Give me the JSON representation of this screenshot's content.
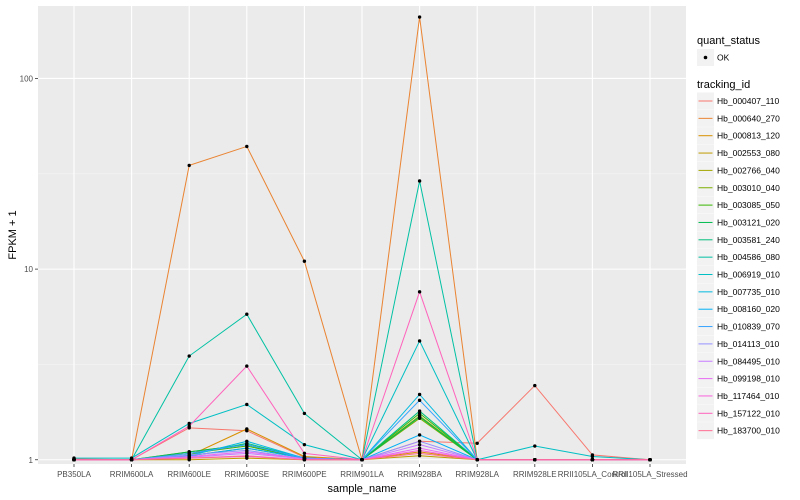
{
  "chart_data": {
    "type": "line",
    "xlabel": "sample_name",
    "ylabel": "FPKM + 1",
    "y_scale": "log10",
    "ylim": [
      0.95,
      240
    ],
    "yticks": [
      1,
      10,
      100
    ],
    "ytick_labels": [
      "1",
      "10",
      "100"
    ],
    "categories": [
      "PB350LA",
      "RRIM600LA",
      "RRIM600LE",
      "RRIM600SE",
      "RRIM600PE",
      "RRIM901LA",
      "RRIM928BA",
      "RRIM928LA",
      "RRIM928LE",
      "RRII105LA_Control",
      "RRII105LA_Stressed"
    ],
    "legend_status": {
      "title": "quant_status",
      "entries": [
        "OK"
      ]
    },
    "legend_tracking": {
      "title": "tracking_id"
    },
    "series": [
      {
        "name": "Hb_000407_110",
        "color": "#F8766D",
        "values": [
          1.01,
          1.0,
          1.47,
          1.42,
          1.03,
          1.0,
          1.25,
          1.22,
          2.45,
          1.06,
          1.0
        ]
      },
      {
        "name": "Hb_000640_270",
        "color": "#EA8331",
        "values": [
          1.0,
          1.0,
          35.0,
          44.0,
          11.0,
          1.0,
          210.0,
          1.0,
          1.0,
          1.0,
          1.0
        ]
      },
      {
        "name": "Hb_000813_120",
        "color": "#D89000",
        "values": [
          1.0,
          1.0,
          1.05,
          1.45,
          1.04,
          1.0,
          1.1,
          1.0,
          1.0,
          1.0,
          1.0
        ]
      },
      {
        "name": "Hb_002553_080",
        "color": "#C09B00",
        "values": [
          1.0,
          1.0,
          1.0,
          1.02,
          1.0,
          1.0,
          1.05,
          1.0,
          1.0,
          1.0,
          1.0
        ]
      },
      {
        "name": "Hb_002766_040",
        "color": "#A3A500",
        "values": [
          1.0,
          1.0,
          1.1,
          1.2,
          1.02,
          1.0,
          1.7,
          1.0,
          1.0,
          1.0,
          1.0
        ]
      },
      {
        "name": "Hb_003010_040",
        "color": "#7CAE00",
        "values": [
          1.0,
          1.0,
          1.05,
          1.15,
          1.02,
          1.0,
          1.65,
          1.0,
          1.0,
          1.0,
          1.0
        ]
      },
      {
        "name": "Hb_003085_050",
        "color": "#39B600",
        "values": [
          1.0,
          1.0,
          1.08,
          1.18,
          1.02,
          1.0,
          1.75,
          1.0,
          1.0,
          1.0,
          1.0
        ]
      },
      {
        "name": "Hb_003121_020",
        "color": "#00BB4E",
        "values": [
          1.0,
          1.0,
          1.1,
          1.2,
          1.02,
          1.0,
          1.68,
          1.0,
          1.0,
          1.0,
          1.0
        ]
      },
      {
        "name": "Hb_003581_240",
        "color": "#00BF7D",
        "values": [
          1.0,
          1.0,
          1.06,
          1.22,
          1.02,
          1.0,
          1.8,
          1.0,
          1.0,
          1.0,
          1.0
        ]
      },
      {
        "name": "Hb_004586_080",
        "color": "#00C1A3",
        "values": [
          1.0,
          1.0,
          3.5,
          5.8,
          1.75,
          1.0,
          29.0,
          1.0,
          1.0,
          1.0,
          1.0
        ]
      },
      {
        "name": "Hb_006919_010",
        "color": "#00BFC4",
        "values": [
          1.02,
          1.02,
          1.55,
          1.95,
          1.2,
          1.0,
          4.2,
          1.0,
          1.18,
          1.04,
          1.0
        ]
      },
      {
        "name": "Hb_007735_010",
        "color": "#00BAE0",
        "values": [
          1.0,
          1.0,
          1.05,
          1.25,
          1.02,
          1.0,
          2.2,
          1.0,
          1.0,
          1.0,
          1.0
        ]
      },
      {
        "name": "Hb_008160_020",
        "color": "#00B0F6",
        "values": [
          1.0,
          1.0,
          1.05,
          1.15,
          1.02,
          1.0,
          1.35,
          1.0,
          1.0,
          1.0,
          1.0
        ]
      },
      {
        "name": "Hb_010839_070",
        "color": "#35A2FF",
        "values": [
          1.0,
          1.0,
          1.08,
          1.2,
          1.02,
          1.0,
          2.05,
          1.0,
          1.0,
          1.0,
          1.0
        ]
      },
      {
        "name": "Hb_014113_010",
        "color": "#9590FF",
        "values": [
          1.0,
          1.0,
          1.06,
          1.12,
          1.01,
          1.0,
          1.25,
          1.0,
          1.0,
          1.0,
          1.0
        ]
      },
      {
        "name": "Hb_084495_010",
        "color": "#C77CFF",
        "values": [
          1.0,
          1.0,
          1.03,
          1.08,
          1.01,
          1.0,
          1.2,
          1.0,
          1.0,
          1.0,
          1.0
        ]
      },
      {
        "name": "Hb_099198_010",
        "color": "#E76BF3",
        "values": [
          1.0,
          1.0,
          1.04,
          1.1,
          1.01,
          1.0,
          1.15,
          1.0,
          1.0,
          1.0,
          1.0
        ]
      },
      {
        "name": "Hb_117464_010",
        "color": "#FA62DB",
        "values": [
          1.0,
          1.0,
          1.02,
          1.05,
          1.0,
          1.0,
          1.12,
          1.0,
          1.0,
          1.0,
          1.0
        ]
      },
      {
        "name": "Hb_157122_010",
        "color": "#FF62BC",
        "values": [
          1.0,
          1.0,
          1.5,
          3.1,
          1.08,
          1.0,
          7.6,
          1.0,
          1.0,
          1.0,
          1.0
        ]
      },
      {
        "name": "Hb_183700_010",
        "color": "#FF6C91",
        "values": [
          1.0,
          1.0,
          1.02,
          1.04,
          1.0,
          1.0,
          1.08,
          1.0,
          1.0,
          1.0,
          1.0
        ]
      }
    ]
  }
}
